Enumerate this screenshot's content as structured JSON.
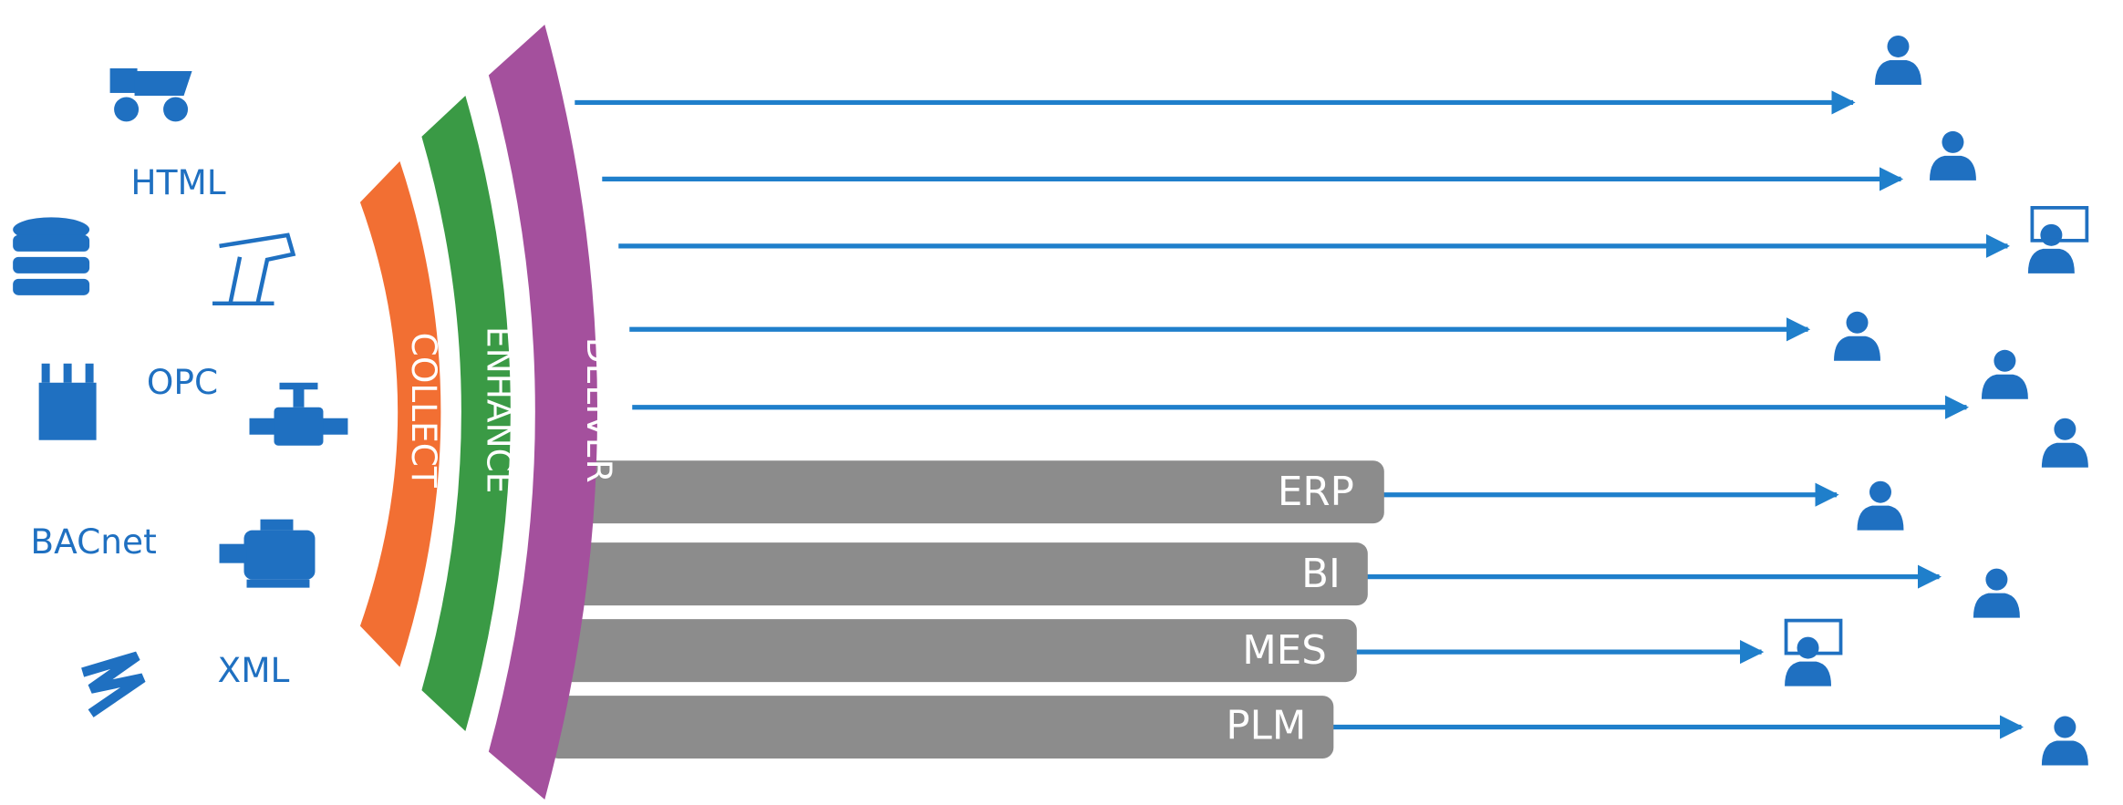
{
  "sources": {
    "labels": [
      "HTML",
      "OPC",
      "BACnet",
      "XML"
    ]
  },
  "stages": [
    "COLLECT",
    "ENHANCE",
    "DELIVER"
  ],
  "systems": [
    "ERP",
    "BI",
    "MES",
    "PLM"
  ]
}
